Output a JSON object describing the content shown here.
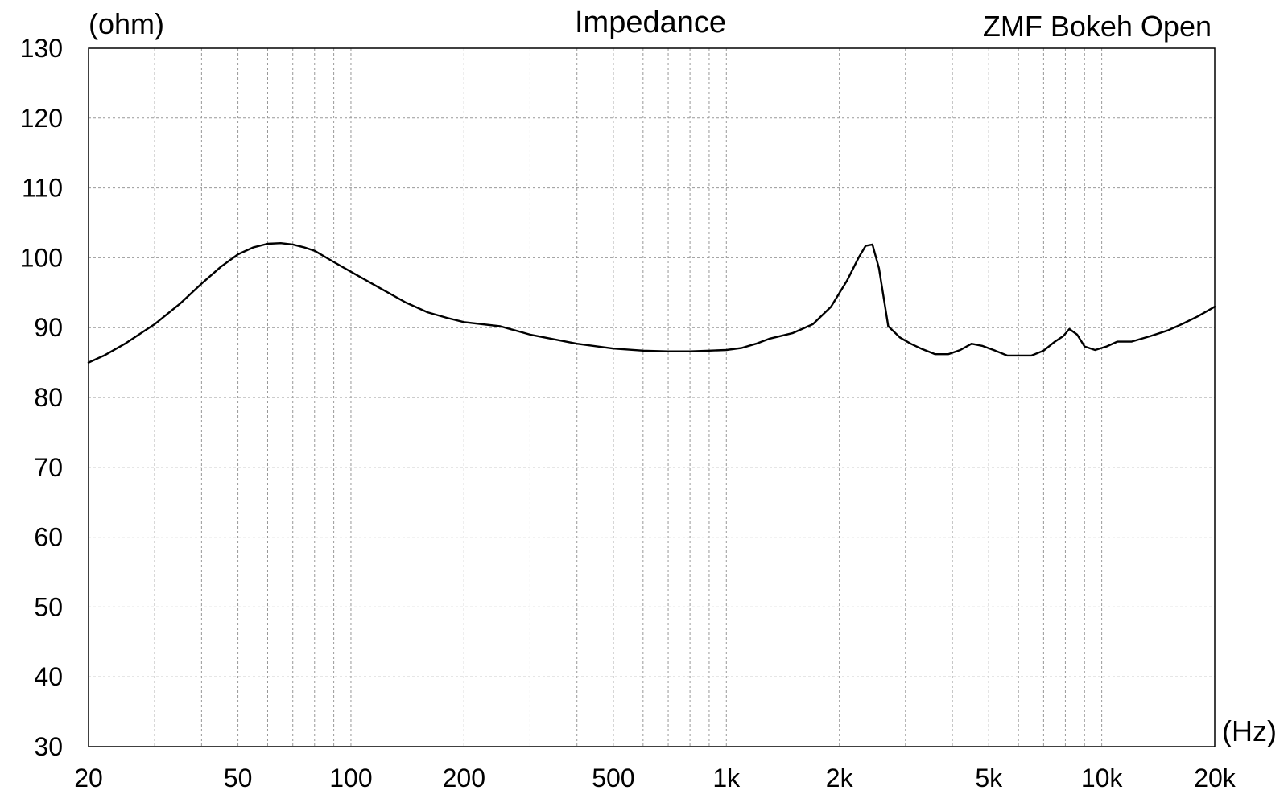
{
  "chart_data": {
    "type": "line",
    "title": "Impedance",
    "subtitle": "ZMF Bokeh Open",
    "xlabel": "(Hz)",
    "ylabel": "(ohm)",
    "xscale": "log",
    "xlim": [
      20,
      20000
    ],
    "ylim": [
      30,
      130
    ],
    "grid": true,
    "legend": "none",
    "x_ticks": [
      {
        "value": 20,
        "label": "20"
      },
      {
        "value": 50,
        "label": "50"
      },
      {
        "value": 100,
        "label": "100"
      },
      {
        "value": 200,
        "label": "200"
      },
      {
        "value": 500,
        "label": "500"
      },
      {
        "value": 1000,
        "label": "1k"
      },
      {
        "value": 2000,
        "label": "2k"
      },
      {
        "value": 5000,
        "label": "5k"
      },
      {
        "value": 10000,
        "label": "10k"
      },
      {
        "value": 20000,
        "label": "20k"
      }
    ],
    "y_ticks": [
      {
        "value": 130,
        "label": "130"
      },
      {
        "value": 120,
        "label": "120"
      },
      {
        "value": 110,
        "label": "110"
      },
      {
        "value": 100,
        "label": "100"
      },
      {
        "value": 90,
        "label": "90"
      },
      {
        "value": 80,
        "label": "80"
      },
      {
        "value": 70,
        "label": "70"
      },
      {
        "value": 60,
        "label": "60"
      },
      {
        "value": 50,
        "label": "50"
      },
      {
        "value": 40,
        "label": "40"
      },
      {
        "value": 30,
        "label": "30"
      }
    ],
    "series": [
      {
        "color": "#000000",
        "x": [
          20,
          22,
          25,
          30,
          35,
          40,
          45,
          50,
          55,
          60,
          65,
          70,
          75,
          80,
          90,
          100,
          120,
          140,
          160,
          180,
          200,
          250,
          300,
          400,
          500,
          600,
          700,
          800,
          900,
          1000,
          1100,
          1200,
          1300,
          1500,
          1700,
          1900,
          2100,
          2250,
          2350,
          2450,
          2550,
          2700,
          2900,
          3100,
          3300,
          3600,
          3900,
          4200,
          4500,
          4800,
          5200,
          5600,
          6000,
          6500,
          7000,
          7500,
          7900,
          8200,
          8600,
          9000,
          9600,
          10300,
          11000,
          12000,
          13500,
          15000,
          16500,
          18000,
          20000
        ],
        "y": [
          85,
          86,
          87.7,
          90.5,
          93.4,
          96.3,
          98.7,
          100.5,
          101.5,
          102,
          102.1,
          101.9,
          101.5,
          101,
          99.4,
          98,
          95.6,
          93.6,
          92.2,
          91.4,
          90.8,
          90.2,
          89,
          87.7,
          87,
          86.7,
          86.6,
          86.6,
          86.7,
          86.8,
          87.1,
          87.7,
          88.4,
          89.2,
          90.5,
          93,
          96.8,
          100,
          101.7,
          101.9,
          98.5,
          90.2,
          88.6,
          87.7,
          87,
          86.2,
          86.2,
          86.8,
          87.7,
          87.4,
          86.7,
          86,
          86,
          86,
          86.7,
          88,
          88.8,
          89.8,
          89,
          87.3,
          86.8,
          87.3,
          88,
          88,
          88.8,
          89.6,
          90.6,
          91.6,
          93
        ]
      }
    ]
  }
}
